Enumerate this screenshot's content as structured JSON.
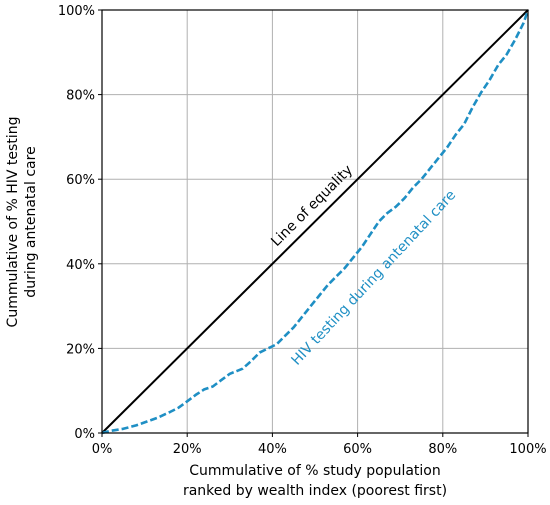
{
  "chart_data": {
    "type": "line",
    "xlabel": [
      "Cummulative of % study population",
      "ranked by wealth index (poorest first)"
    ],
    "ylabel": [
      "Cummulative of % HIV testing",
      "during antenatal care"
    ],
    "xlim": [
      0,
      100
    ],
    "ylim": [
      0,
      100
    ],
    "x_ticks": [
      0,
      20,
      40,
      60,
      80,
      100
    ],
    "y_ticks": [
      0,
      20,
      40,
      60,
      80,
      100
    ],
    "x_tick_labels": [
      "0%",
      "20%",
      "40%",
      "60%",
      "80%",
      "100%"
    ],
    "y_tick_labels": [
      "0%",
      "20%",
      "40%",
      "60%",
      "80%",
      "100%"
    ],
    "grid": true,
    "series": [
      {
        "name": "Line of equality",
        "color": "#000000",
        "style": "solid",
        "x": [
          0,
          100
        ],
        "y": [
          0,
          100
        ]
      },
      {
        "name": "HIV testing during antenatal care",
        "color": "#1f8fc4",
        "style": "dashed",
        "x": [
          0,
          2,
          5,
          8,
          10,
          13,
          16,
          18,
          20,
          22,
          24,
          26,
          28,
          30,
          33,
          35,
          37,
          39,
          41,
          43,
          45,
          47,
          49,
          51,
          53,
          55,
          57,
          59,
          61,
          63,
          65,
          67,
          69,
          71,
          73,
          75,
          77,
          79,
          81,
          83,
          85,
          87,
          89,
          91,
          93,
          95,
          97,
          99,
          100
        ],
        "y": [
          0,
          0.5,
          1,
          1.8,
          2.5,
          3.6,
          5,
          6,
          7.5,
          9,
          10.3,
          11,
          12.5,
          14,
          15.2,
          17,
          19,
          20,
          21,
          23,
          25,
          27.5,
          30,
          32.5,
          35,
          37,
          39,
          41.5,
          44,
          47,
          50,
          52,
          53.5,
          55.5,
          58,
          60,
          62.5,
          65,
          67.5,
          70.5,
          73,
          77,
          80.5,
          83.5,
          87,
          89.5,
          93,
          97,
          100
        ]
      }
    ],
    "annotations": [
      {
        "text": "Line of equality",
        "color": "#000000"
      },
      {
        "text": "HIV testing during antenatal care",
        "color": "#1f8fc4"
      }
    ]
  }
}
